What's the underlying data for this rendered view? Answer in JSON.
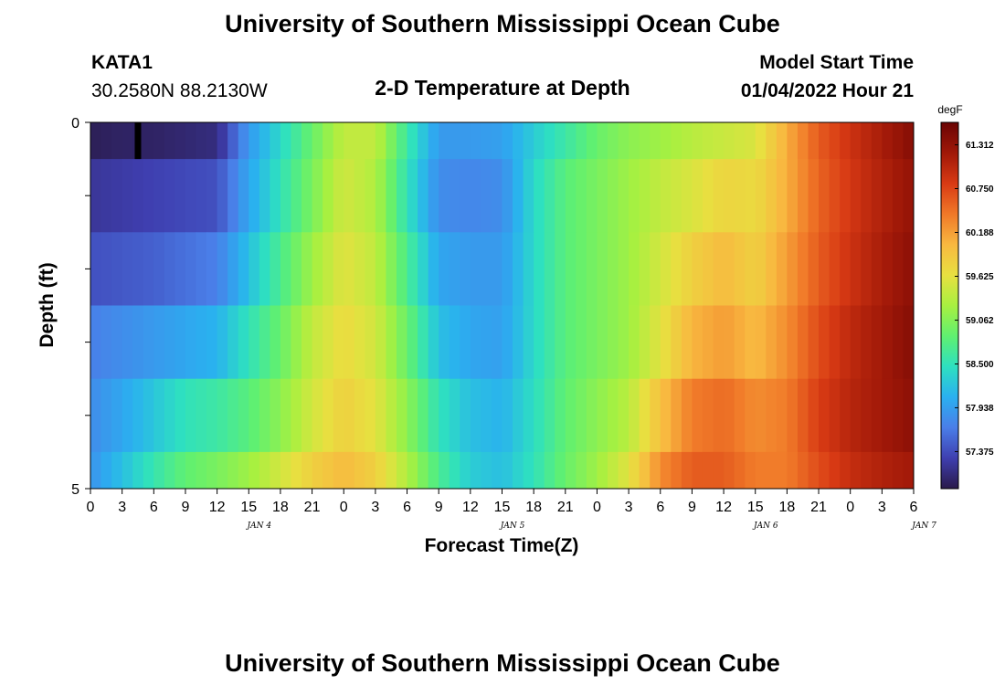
{
  "figure": {
    "title": "University of Southern Mississippi Ocean Cube",
    "station": "KATA1",
    "coordinates": "30.2580N  88.2130W",
    "subtitle": "2-D Temperature at Depth",
    "model_start_label": "Model Start Time",
    "model_start_value": "01/04/2022 Hour 21",
    "footer_title": "University of Southern Mississippi Ocean Cube",
    "colorbar_unit": "degF",
    "day_labels": [
      {
        "text": "JAN 4",
        "hour": 16
      },
      {
        "text": "JAN 5",
        "hour": 40
      },
      {
        "text": "JAN 6",
        "hour": 64
      },
      {
        "text": "JAN 7",
        "hour": 79
      }
    ]
  },
  "chart_data": {
    "type": "heatmap",
    "title": "2-D Temperature at Depth",
    "xlabel": "Forecast Time(Z)",
    "ylabel": "Depth (ft)",
    "x_unit": "hours from 01/04/2022 00Z",
    "xlim": [
      0,
      78
    ],
    "ylim": [
      0,
      5
    ],
    "y_inverted": true,
    "x_tick_hours": [
      0,
      3,
      6,
      9,
      12,
      15,
      18,
      21,
      24,
      27,
      30,
      33,
      36,
      39,
      42,
      45,
      48,
      51,
      54,
      57,
      60,
      63,
      66,
      69,
      72,
      75,
      78
    ],
    "x_tick_labels": [
      "0",
      "3",
      "6",
      "9",
      "12",
      "15",
      "18",
      "21",
      "0",
      "3",
      "6",
      "9",
      "12",
      "15",
      "18",
      "21",
      "0",
      "3",
      "6",
      "9",
      "12",
      "15",
      "18",
      "21",
      "0",
      "3",
      "6"
    ],
    "y_ticks": [
      0,
      1,
      2,
      3,
      4,
      5
    ],
    "y_tick_labels": [
      "0",
      "",
      "",
      "",
      "",
      "5"
    ],
    "depth_bins": [
      [
        0,
        0.5
      ],
      [
        0.5,
        1.5
      ],
      [
        1.5,
        2.5
      ],
      [
        2.5,
        3.5
      ],
      [
        3.5,
        4.5
      ],
      [
        4.5,
        5
      ]
    ],
    "colorbar": {
      "unit": "degF",
      "min": 56.9,
      "max": 61.6,
      "ticks": [
        57.375,
        57.938,
        58.5,
        59.062,
        59.625,
        60.188,
        60.75,
        61.312
      ],
      "tick_labels": [
        "57.375",
        "57.938",
        "58.500",
        "59.062",
        "59.625",
        "60.188",
        "60.750",
        "61.312"
      ],
      "colors": [
        "#2a1a4a",
        "#3f3fb0",
        "#4a7ee8",
        "#2ab0f0",
        "#2ee0c0",
        "#60f070",
        "#a8f040",
        "#e8e040",
        "#f8b840",
        "#f07828",
        "#d83a14",
        "#a01808",
        "#6a0404"
      ]
    },
    "marker": {
      "hour": 4.5,
      "depth_range": [
        0,
        0.5
      ]
    },
    "time_points": [
      0,
      3,
      6,
      9,
      12,
      15,
      18,
      21,
      24,
      27,
      30,
      33,
      36,
      39,
      42,
      45,
      48,
      51,
      54,
      57,
      60,
      63,
      66,
      69,
      72,
      75,
      78
    ],
    "rows": [
      {
        "depth": "0-0.5",
        "values": [
          56.95,
          57.0,
          57.0,
          57.05,
          57.1,
          57.9,
          58.4,
          58.9,
          59.4,
          59.4,
          58.6,
          57.9,
          57.9,
          57.95,
          58.3,
          58.6,
          58.9,
          59.1,
          59.2,
          59.35,
          59.45,
          59.55,
          60.1,
          60.6,
          60.9,
          61.15,
          61.4
        ]
      },
      {
        "depth": "0.5-1.5",
        "values": [
          57.2,
          57.25,
          57.3,
          57.35,
          57.4,
          58.0,
          58.5,
          59.0,
          59.5,
          59.3,
          58.5,
          57.8,
          57.75,
          57.8,
          58.4,
          58.8,
          59.0,
          59.2,
          59.4,
          59.55,
          59.75,
          59.7,
          60.1,
          60.55,
          60.85,
          61.1,
          61.3
        ]
      },
      {
        "depth": "1.5-2.5",
        "values": [
          57.4,
          57.45,
          57.5,
          57.6,
          57.7,
          58.2,
          58.7,
          59.2,
          59.6,
          59.4,
          58.7,
          58.0,
          57.9,
          57.9,
          58.4,
          58.8,
          59.0,
          59.2,
          59.5,
          59.8,
          60.0,
          59.8,
          60.2,
          60.6,
          60.9,
          61.15,
          61.35
        ]
      },
      {
        "depth": "2.5-3.5",
        "values": [
          57.7,
          57.8,
          57.9,
          58.0,
          58.1,
          58.5,
          58.9,
          59.4,
          59.7,
          59.5,
          58.9,
          58.2,
          58.0,
          57.95,
          58.4,
          58.8,
          59.0,
          59.2,
          59.6,
          60.05,
          60.2,
          60.0,
          60.3,
          60.7,
          61.0,
          61.2,
          61.4
        ]
      },
      {
        "depth": "3.5-4.5",
        "values": [
          57.8,
          58.0,
          58.25,
          58.5,
          58.6,
          58.8,
          59.1,
          59.5,
          59.8,
          59.6,
          59.1,
          58.5,
          58.2,
          58.1,
          58.45,
          58.85,
          59.1,
          59.35,
          59.95,
          60.4,
          60.5,
          60.3,
          60.4,
          60.8,
          61.05,
          61.2,
          61.35
        ]
      },
      {
        "depth": "4.5-5",
        "values": [
          57.85,
          58.2,
          58.55,
          58.85,
          59.0,
          59.2,
          59.5,
          59.8,
          60.0,
          59.8,
          59.3,
          58.7,
          58.3,
          58.2,
          58.5,
          58.9,
          59.2,
          59.6,
          60.3,
          60.6,
          60.6,
          60.4,
          60.4,
          60.7,
          60.95,
          61.1,
          61.2
        ]
      }
    ]
  }
}
